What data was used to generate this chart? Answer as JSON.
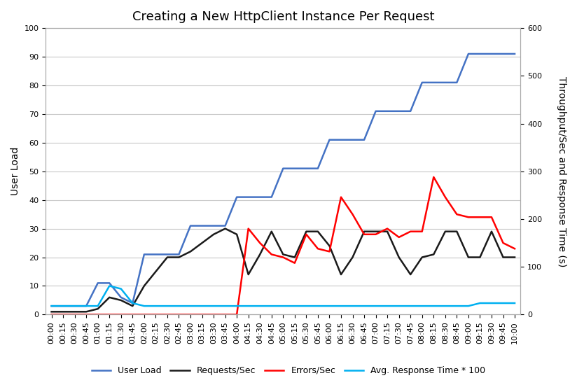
{
  "title": "Creating a New HttpClient Instance Per Request",
  "ylabel_left": "User Load",
  "ylabel_right": "Throughput/Sec and Response Time (s)",
  "ylim_left": [
    0,
    100
  ],
  "ylim_right": [
    0,
    600
  ],
  "yticks_left": [
    0,
    10,
    20,
    30,
    40,
    50,
    60,
    70,
    80,
    90,
    100
  ],
  "yticks_right": [
    0,
    100,
    200,
    300,
    400,
    500,
    600
  ],
  "background_color": "#ffffff",
  "plot_bg_color": "#ffffff",
  "grid_color": "#c8c8c8",
  "time_labels": [
    "00:00",
    "00:15",
    "00:30",
    "00:45",
    "01:00",
    "01:15",
    "01:30",
    "01:45",
    "02:00",
    "02:15",
    "02:30",
    "02:45",
    "03:00",
    "03:15",
    "03:30",
    "03:45",
    "04:00",
    "04:15",
    "04:30",
    "04:45",
    "05:00",
    "05:15",
    "05:30",
    "05:45",
    "06:00",
    "06:15",
    "06:30",
    "06:45",
    "07:00",
    "07:15",
    "07:30",
    "07:45",
    "08:00",
    "08:15",
    "08:30",
    "08:45",
    "09:00",
    "09:15",
    "09:30",
    "09:45",
    "10:00"
  ],
  "user_load": [
    3,
    3,
    3,
    3,
    11,
    11,
    6,
    4,
    21,
    21,
    21,
    21,
    31,
    31,
    31,
    31,
    41,
    41,
    41,
    41,
    51,
    51,
    51,
    51,
    61,
    61,
    61,
    61,
    71,
    71,
    71,
    71,
    81,
    81,
    81,
    81,
    91,
    91,
    91,
    91,
    91
  ],
  "requests_per_sec": [
    1,
    1,
    1,
    1,
    2,
    6,
    5,
    3,
    10,
    15,
    20,
    20,
    22,
    25,
    28,
    30,
    28,
    14,
    21,
    29,
    21,
    20,
    29,
    29,
    24,
    14,
    20,
    29,
    29,
    29,
    20,
    14,
    20,
    21,
    29,
    29,
    20,
    20,
    29,
    20,
    20
  ],
  "errors_per_sec": [
    0,
    0,
    0,
    0,
    0,
    0,
    0,
    0,
    0,
    0,
    0,
    0,
    0,
    0,
    0,
    0,
    0,
    30,
    25,
    21,
    20,
    18,
    28,
    23,
    22,
    41,
    35,
    28,
    28,
    30,
    27,
    29,
    29,
    48,
    41,
    35,
    34,
    34,
    34,
    25,
    23
  ],
  "avg_response_time": [
    3,
    3,
    3,
    3,
    3,
    10,
    9,
    4,
    3,
    3,
    3,
    3,
    3,
    3,
    3,
    3,
    3,
    3,
    3,
    3,
    3,
    3,
    3,
    3,
    3,
    3,
    3,
    3,
    3,
    3,
    3,
    3,
    3,
    3,
    3,
    3,
    3,
    4,
    4,
    4,
    4
  ],
  "user_load_color": "#4472C4",
  "requests_per_sec_color": "#1a1a1a",
  "errors_per_sec_color": "#FF0000",
  "avg_response_time_color": "#00B0F0",
  "line_width": 1.8,
  "legend_labels": [
    "User Load",
    "Requests/Sec",
    "Errors/Sec",
    "Avg. Response Time * 100"
  ],
  "title_fontsize": 13,
  "axis_label_fontsize": 10,
  "tick_fontsize": 8,
  "legend_fontsize": 9
}
